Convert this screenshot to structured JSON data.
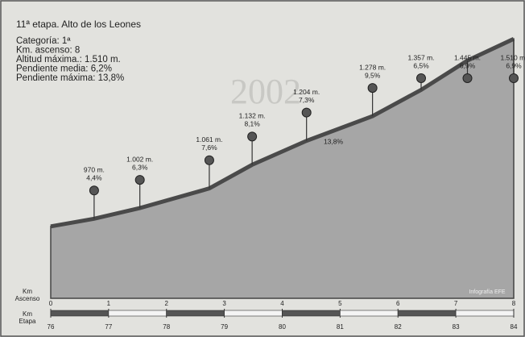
{
  "chart_data": {
    "type": "area",
    "title": "11ª etapa. Alto de los Leones",
    "info": [
      "Categoría: 1ª",
      "Km. ascenso: 8",
      "Altitud máxima.: 1.510 m.",
      "Pendiente media: 6,2%",
      "Pendiente máxima: 13,8%"
    ],
    "watermark": "2002",
    "x": [
      0,
      0.75,
      1.54,
      2.74,
      3.48,
      4.42,
      5.56,
      6.4,
      7.2,
      8
    ],
    "values": [
      947,
      970,
      1002,
      1061,
      1132,
      1204,
      1278,
      1357,
      1445,
      1510
    ],
    "value_labels": [
      null,
      "970 m.",
      "1.002 m.",
      "1.061 m.",
      "1.132 m.",
      "1.204 m.",
      "1.278 m.",
      "1.357 m.",
      "1.445 m.",
      "1.510 m."
    ],
    "gradients": [
      null,
      "4,4%",
      "6,3%",
      "7,6%",
      "8,1%",
      "7,3%",
      "9,5%",
      "6,5%",
      "6,9%",
      "6,9%"
    ],
    "annotation": "13,8%",
    "color": "#a6a6a6",
    "line_color": "#4a4a4a",
    "xlim": [
      0,
      8
    ],
    "ylim": [
      731,
      1530
    ],
    "xlabel": [
      "Km",
      "Ascenso"
    ],
    "xticks": [
      0,
      1,
      2,
      3,
      4,
      5,
      6,
      7,
      8
    ],
    "x2label": [
      "Km",
      "Etapa"
    ],
    "x2ticks": [
      76,
      77,
      78,
      79,
      80,
      81,
      82,
      83,
      84
    ],
    "credit": "Infografía EFE"
  }
}
